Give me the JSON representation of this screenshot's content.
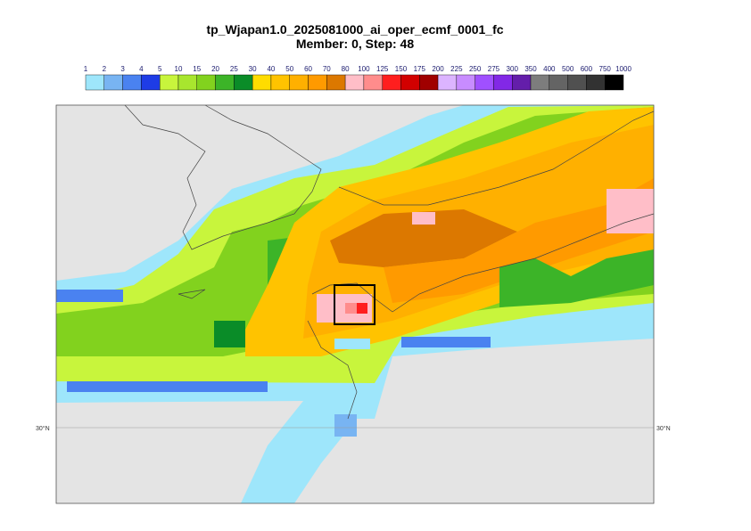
{
  "header": {
    "title": "tp_Wjapan1.0_2025081000_ai_oper_ecmf_0001_fc",
    "subtitle": "Member: 0, Step: 48"
  },
  "colorbar": {
    "levels": [
      1,
      2,
      3,
      4,
      5,
      10,
      15,
      20,
      25,
      30,
      40,
      50,
      60,
      70,
      80,
      100,
      125,
      150,
      175,
      200,
      225,
      250,
      275,
      300,
      350,
      400,
      500,
      600,
      750,
      1000
    ],
    "colors": [
      "#9ee6fb",
      "#78b4f2",
      "#4a82f0",
      "#1e3ce6",
      "#c8f53c",
      "#a8e62e",
      "#82d21e",
      "#3cb428",
      "#0a8c28",
      "#ffdc00",
      "#ffc300",
      "#ffb000",
      "#ff9a00",
      "#dc7800",
      "#ffbec8",
      "#ff8c8c",
      "#ff1e1e",
      "#d20000",
      "#a00000",
      "#dcb4ff",
      "#c88cff",
      "#a050ff",
      "#8228e6",
      "#641eaa",
      "#7d7d7d",
      "#646464",
      "#505050",
      "#323232",
      "#000000"
    ]
  },
  "map": {
    "lat_left": "30°N",
    "lat_right": "30°N"
  }
}
